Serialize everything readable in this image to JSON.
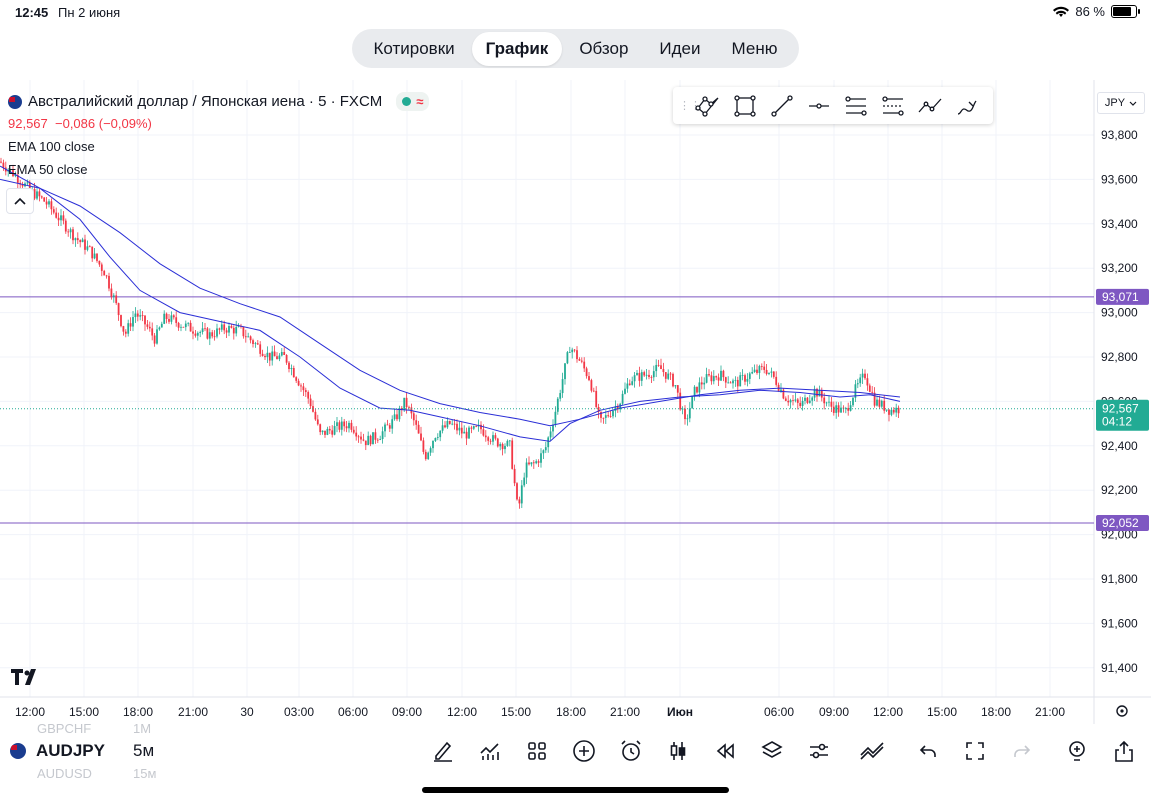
{
  "status_bar": {
    "time": "12:45",
    "date": "Пн 2 июня",
    "battery": "86 %",
    "battery_level": 0.86
  },
  "tabs": [
    {
      "label": "Котировки",
      "active": false
    },
    {
      "label": "График",
      "active": true
    },
    {
      "label": "Обзор",
      "active": false
    },
    {
      "label": "Идеи",
      "active": false
    },
    {
      "label": "Меню",
      "active": false
    }
  ],
  "legend": {
    "symbol_title": "Австралийский доллар / Японская иена · 5 · FXCM",
    "price": "92,567",
    "change": "−0,086 (−0,09%)",
    "indicators": [
      "EMA 100 close",
      "EMA 50 close"
    ]
  },
  "currency_selector": "JPY",
  "drawing_tools": [
    "pattern-tool",
    "rectangle-tool",
    "trend-line-tool",
    "horizontal-ray-tool",
    "fib-retracement-tool",
    "parallel-channel-tool",
    "path-tool",
    "brush-tool"
  ],
  "colors": {
    "up": "#22ab94",
    "down": "#f23645",
    "ema": "#2a2ed6",
    "levels": "#7e57c2",
    "axis_text": "#131722"
  },
  "chart_data": {
    "type": "candlestick",
    "symbol": "AUDJPY",
    "interval": "5м",
    "ylim": [
      91.3,
      93.9
    ],
    "y_ticks": [
      93.8,
      93.6,
      93.4,
      93.2,
      93.0,
      92.8,
      92.6,
      92.4,
      92.2,
      92.0,
      91.8,
      91.6,
      91.4
    ],
    "y_tick_labels": [
      "93,800",
      "93,600",
      "93,400",
      "93,200",
      "93,000",
      "92,800",
      "92,600",
      "92,400",
      "92,200",
      "92,000",
      "91,800",
      "91,600",
      "91,400"
    ],
    "x_ticks": [
      {
        "label": "12:00",
        "x": 30
      },
      {
        "label": "15:00",
        "x": 84
      },
      {
        "label": "18:00",
        "x": 138
      },
      {
        "label": "21:00",
        "x": 193
      },
      {
        "label": "30",
        "x": 247
      },
      {
        "label": "03:00",
        "x": 299
      },
      {
        "label": "06:00",
        "x": 353
      },
      {
        "label": "09:00",
        "x": 407
      },
      {
        "label": "12:00",
        "x": 462
      },
      {
        "label": "15:00",
        "x": 516
      },
      {
        "label": "18:00",
        "x": 571
      },
      {
        "label": "21:00",
        "x": 625
      },
      {
        "label": "Июн",
        "x": 680
      },
      {
        "label": "06:00",
        "x": 779
      },
      {
        "label": "09:00",
        "x": 834
      },
      {
        "label": "12:00",
        "x": 888
      },
      {
        "label": "15:00",
        "x": 942
      },
      {
        "label": "18:00",
        "x": 996
      },
      {
        "label": "21:00",
        "x": 1050
      }
    ],
    "price_path": [
      [
        0,
        93.68
      ],
      [
        15,
        93.62
      ],
      [
        30,
        93.55
      ],
      [
        45,
        93.5
      ],
      [
        60,
        93.42
      ],
      [
        75,
        93.34
      ],
      [
        90,
        93.28
      ],
      [
        105,
        93.18
      ],
      [
        115,
        93.05
      ],
      [
        125,
        92.9
      ],
      [
        135,
        93.0
      ],
      [
        145,
        92.95
      ],
      [
        155,
        92.88
      ],
      [
        165,
        92.98
      ],
      [
        180,
        92.95
      ],
      [
        195,
        92.92
      ],
      [
        210,
        92.9
      ],
      [
        225,
        92.93
      ],
      [
        240,
        92.92
      ],
      [
        255,
        92.86
      ],
      [
        270,
        92.8
      ],
      [
        285,
        92.8
      ],
      [
        300,
        92.68
      ],
      [
        310,
        92.6
      ],
      [
        320,
        92.45
      ],
      [
        335,
        92.48
      ],
      [
        350,
        92.5
      ],
      [
        365,
        92.42
      ],
      [
        380,
        92.45
      ],
      [
        395,
        92.52
      ],
      [
        405,
        92.6
      ],
      [
        415,
        92.5
      ],
      [
        425,
        92.35
      ],
      [
        435,
        92.45
      ],
      [
        450,
        92.5
      ],
      [
        465,
        92.45
      ],
      [
        480,
        92.48
      ],
      [
        495,
        92.42
      ],
      [
        510,
        92.4
      ],
      [
        518,
        92.1
      ],
      [
        525,
        92.3
      ],
      [
        535,
        92.32
      ],
      [
        545,
        92.38
      ],
      [
        555,
        92.55
      ],
      [
        565,
        92.75
      ],
      [
        570,
        92.85
      ],
      [
        580,
        92.78
      ],
      [
        590,
        92.7
      ],
      [
        600,
        92.5
      ],
      [
        610,
        92.55
      ],
      [
        620,
        92.6
      ],
      [
        630,
        92.7
      ],
      [
        645,
        92.72
      ],
      [
        660,
        92.75
      ],
      [
        675,
        92.68
      ],
      [
        685,
        92.5
      ],
      [
        695,
        92.65
      ],
      [
        705,
        92.7
      ],
      [
        720,
        92.72
      ],
      [
        735,
        92.68
      ],
      [
        750,
        92.72
      ],
      [
        765,
        92.75
      ],
      [
        775,
        92.7
      ],
      [
        785,
        92.62
      ],
      [
        800,
        92.58
      ],
      [
        815,
        92.65
      ],
      [
        830,
        92.58
      ],
      [
        845,
        92.55
      ],
      [
        855,
        92.65
      ],
      [
        865,
        92.72
      ],
      [
        875,
        92.6
      ],
      [
        890,
        92.56
      ],
      [
        900,
        92.567
      ]
    ],
    "ema_50": [
      [
        0,
        93.66
      ],
      [
        40,
        93.56
      ],
      [
        80,
        93.42
      ],
      [
        110,
        93.25
      ],
      [
        140,
        93.1
      ],
      [
        180,
        93.0
      ],
      [
        220,
        92.96
      ],
      [
        260,
        92.92
      ],
      [
        300,
        92.8
      ],
      [
        340,
        92.66
      ],
      [
        380,
        92.57
      ],
      [
        410,
        92.56
      ],
      [
        440,
        92.53
      ],
      [
        480,
        92.49
      ],
      [
        520,
        92.44
      ],
      [
        550,
        92.42
      ],
      [
        570,
        92.5
      ],
      [
        600,
        92.56
      ],
      [
        640,
        92.6
      ],
      [
        680,
        92.62
      ],
      [
        720,
        92.63
      ],
      [
        760,
        92.65
      ],
      [
        800,
        92.64
      ],
      [
        840,
        92.62
      ],
      [
        870,
        92.63
      ],
      [
        900,
        92.6
      ]
    ],
    "ema_100": [
      [
        0,
        93.6
      ],
      [
        40,
        93.56
      ],
      [
        80,
        93.48
      ],
      [
        120,
        93.36
      ],
      [
        160,
        93.22
      ],
      [
        200,
        93.11
      ],
      [
        240,
        93.04
      ],
      [
        280,
        92.98
      ],
      [
        320,
        92.86
      ],
      [
        360,
        92.74
      ],
      [
        400,
        92.65
      ],
      [
        440,
        92.59
      ],
      [
        480,
        92.55
      ],
      [
        520,
        92.52
      ],
      [
        550,
        92.49
      ],
      [
        580,
        92.52
      ],
      [
        620,
        92.57
      ],
      [
        660,
        92.6
      ],
      [
        700,
        92.63
      ],
      [
        740,
        92.65
      ],
      [
        780,
        92.66
      ],
      [
        820,
        92.65
      ],
      [
        860,
        92.64
      ],
      [
        900,
        92.62
      ]
    ],
    "levels": [
      {
        "label": "93,071",
        "value": 93.071
      },
      {
        "label": "92,052",
        "value": 92.052
      }
    ],
    "current": {
      "label": "92,567",
      "value": 92.567,
      "countdown": "04:12"
    }
  },
  "bottom_bar": {
    "symbol": "AUDJPY",
    "interval": "5м",
    "ghost_symbols": [
      "GBPCHF",
      "AUDUSD"
    ],
    "ghost_intervals": [
      "1М",
      "15м"
    ]
  }
}
